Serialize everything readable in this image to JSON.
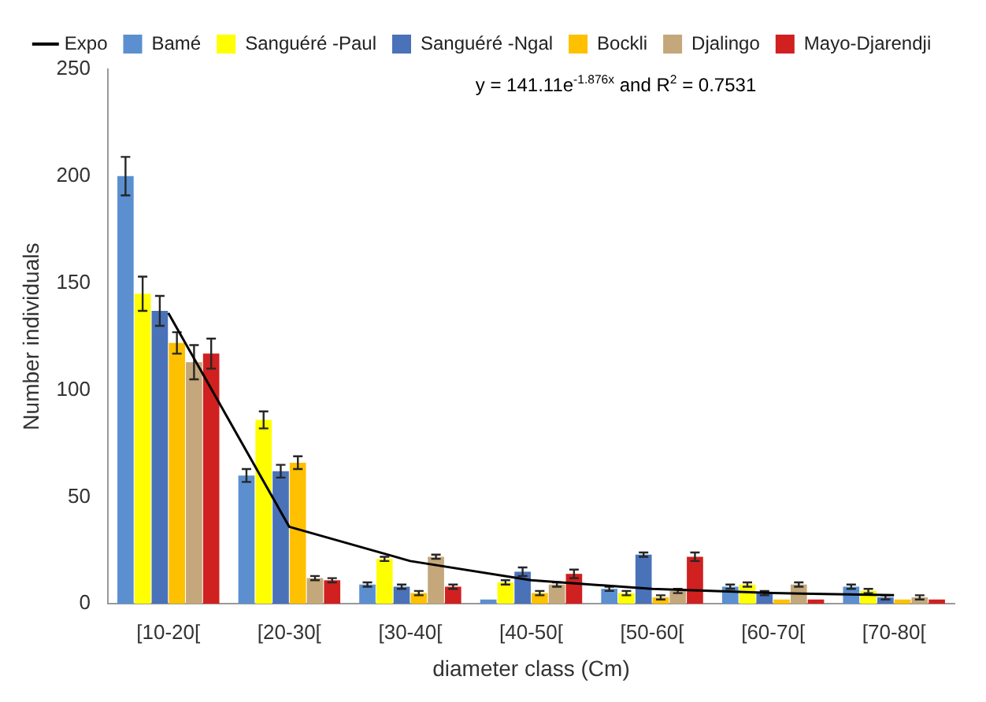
{
  "chart_data": {
    "type": "bar",
    "xlabel": "diameter class (Cm)",
    "ylabel": "Number individuals",
    "categories": [
      "[10-20[",
      "[20-30[",
      "[30-40[",
      "[40-50[",
      "[50-60[",
      "[60-70[",
      "[70-80["
    ],
    "series": [
      {
        "name": "Bamé",
        "color": "#5b8fd0",
        "values": [
          200,
          60,
          9,
          2,
          7,
          8,
          8
        ],
        "errors": [
          9,
          3,
          1,
          null,
          1,
          1,
          1
        ]
      },
      {
        "name": "Sanguéré -Paul",
        "color": "#ffff00",
        "values": [
          145,
          86,
          21,
          10,
          5,
          9,
          6
        ],
        "errors": [
          8,
          4,
          1,
          1,
          1,
          1,
          1
        ]
      },
      {
        "name": "Sanguéré -Ngal",
        "color": "#4a72b8",
        "values": [
          137,
          62,
          8,
          15,
          23,
          5,
          3
        ],
        "errors": [
          7,
          3,
          1,
          2,
          1,
          1,
          1
        ]
      },
      {
        "name": "Bockli",
        "color": "#ffc000",
        "values": [
          122,
          66,
          5,
          5,
          3,
          2,
          2
        ],
        "errors": [
          5,
          3,
          1,
          1,
          1,
          null,
          null
        ]
      },
      {
        "name": "Djalingo",
        "color": "#c4a77a",
        "values": [
          113,
          12,
          22,
          9,
          6,
          9,
          3
        ],
        "errors": [
          8,
          1,
          1,
          1,
          1,
          1,
          1
        ]
      },
      {
        "name": "Mayo-Djarendji",
        "color": "#d02020",
        "values": [
          117,
          11,
          8,
          14,
          22,
          2,
          2
        ],
        "errors": [
          7,
          1,
          1,
          2,
          2,
          null,
          null
        ]
      },
      {
        "name": "Expo",
        "type": "line",
        "color": "#000000",
        "marker": "none",
        "values": [
          136,
          36,
          20,
          11,
          7,
          5,
          4
        ]
      }
    ],
    "ylim": [
      0,
      250
    ],
    "yticks": [
      0,
      50,
      100,
      150,
      200,
      250
    ],
    "grid": false,
    "legend": "top",
    "annotations": [
      "y = 141.11e$^{-1.876x}$ and R$^{2}$ = 0.7531"
    ]
  }
}
